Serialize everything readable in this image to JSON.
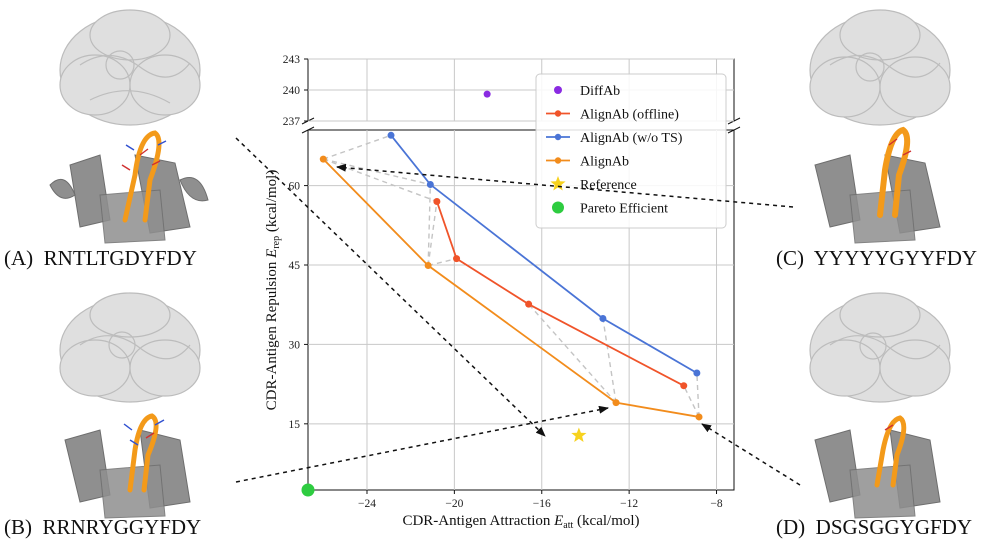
{
  "chart_data": {
    "type": "scatter",
    "xlabel": "CDR-Antigen Attraction",
    "xlabel_symbol": "E",
    "xlabel_sub": "att",
    "xlabel_unit": "(kcal/mol)",
    "ylabel": "CDR-Antigen Repulsion",
    "ylabel_symbol": "E",
    "ylabel_sub": "rep",
    "ylabel_unit": "(kcal/mol)",
    "xlim": [
      -26.7,
      -7.2
    ],
    "x_ticks": [
      -24,
      -20,
      -16,
      -12,
      -8
    ],
    "ylim_lower": [
      2.5,
      70.5
    ],
    "y_ticks_lower": [
      15,
      30,
      45,
      60
    ],
    "ylim_upper": [
      237,
      243
    ],
    "y_ticks_upper": [
      237,
      240,
      243
    ],
    "grid": true,
    "legend_position": "top-right",
    "series": [
      {
        "name": "DiffAb",
        "color": "#8a2be2",
        "marker": "circle",
        "line": false,
        "x": [
          -18.5
        ],
        "y": [
          239.6
        ]
      },
      {
        "name": "AlignAb (offline)",
        "color": "#f0542a",
        "marker": "circle",
        "line": true,
        "x": [
          -20.8,
          -19.9,
          -16.6,
          -9.5
        ],
        "y": [
          57.0,
          46.2,
          37.6,
          22.2
        ]
      },
      {
        "name": "AlignAb (w/o TS)",
        "color": "#4a74d6",
        "marker": "circle",
        "line": true,
        "x": [
          -22.9,
          -21.1,
          -13.2,
          -8.9
        ],
        "y": [
          69.5,
          60.2,
          34.9,
          24.6
        ]
      },
      {
        "name": "AlignAb",
        "color": "#f28c1c",
        "marker": "circle",
        "line": true,
        "x": [
          -26.0,
          -21.2,
          -12.6,
          -8.8
        ],
        "y": [
          65.0,
          44.9,
          19.0,
          16.3
        ]
      },
      {
        "name": "Reference",
        "color": "#f7d21e",
        "marker": "star",
        "line": false,
        "x": [
          -14.3
        ],
        "y": [
          12.8
        ]
      },
      {
        "name": "Pareto Efficient",
        "color": "#2ecc40",
        "marker": "circle",
        "line": false,
        "x": [
          -26.7
        ],
        "y": [
          2.5
        ]
      }
    ],
    "dashed_connections": [
      [
        [
          -26.0,
          65.0
        ],
        [
          -22.9,
          69.5
        ]
      ],
      [
        [
          -26.0,
          65.0
        ],
        [
          -20.8,
          57.0
        ]
      ],
      [
        [
          -26.0,
          65.0
        ],
        [
          -21.1,
          60.2
        ]
      ],
      [
        [
          -21.2,
          44.9
        ],
        [
          -20.8,
          57.0
        ]
      ],
      [
        [
          -21.2,
          44.9
        ],
        [
          -21.1,
          60.2
        ]
      ],
      [
        [
          -21.2,
          44.9
        ],
        [
          -19.9,
          46.2
        ]
      ],
      [
        [
          -12.6,
          19.0
        ],
        [
          -13.2,
          34.9
        ]
      ],
      [
        [
          -12.6,
          19.0
        ],
        [
          -16.6,
          37.6
        ]
      ],
      [
        [
          -8.8,
          16.3
        ],
        [
          -9.5,
          22.2
        ]
      ],
      [
        [
          -8.8,
          16.3
        ],
        [
          -8.9,
          24.6
        ]
      ]
    ]
  },
  "panels": [
    {
      "letter": "(A)",
      "sequence": "RNTLTGDYFDY"
    },
    {
      "letter": "(B)",
      "sequence": "RRNRYGGYFDY"
    },
    {
      "letter": "(C)",
      "sequence": "YYYYYGYYFDY"
    },
    {
      "letter": "(D)",
      "sequence": "DSGSGGYGFDY"
    }
  ],
  "colors": {
    "antigen": "#d4d4d4",
    "antibody": "#8c8c8c",
    "cdr": "#f39a1a",
    "grid": "#c8c8c8",
    "connector": "#c4c4c4"
  }
}
